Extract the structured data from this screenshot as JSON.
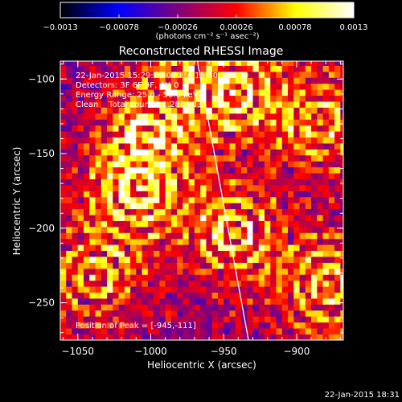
{
  "chart_data": {
    "type": "heatmap",
    "title": "Reconstructed RHESSI Image",
    "xlabel": "Heliocentric X (arcsec)",
    "ylabel": "Heliocentric Y (arcsec)",
    "xlim": [
      -1062,
      -868
    ],
    "ylim": [
      -275,
      -88
    ],
    "x_ticks": [
      -1050,
      -1000,
      -950,
      -900
    ],
    "y_ticks": [
      -100,
      -150,
      -200,
      -250
    ],
    "x_tick_labels": [
      "−1050",
      "−1000",
      "−950",
      "−900"
    ],
    "y_tick_labels": [
      "−100",
      "−150",
      "−200",
      "−250"
    ],
    "colorbar": {
      "range": [
        -0.0013,
        0.0013
      ],
      "ticks": [
        -0.0013,
        -0.00078,
        -0.00026,
        0.00026,
        0.00078,
        0.0013
      ],
      "tick_labels": [
        "−0.0013",
        "−0.00078",
        "−0.00026",
        "0.00026",
        "0.00078",
        "0.0013"
      ],
      "unit_label": "(photons cm⁻² s⁻¹ asec⁻²)",
      "colors": [
        "#000000",
        "#0000ff",
        "#7f007f",
        "#ff0000",
        "#ffff00",
        "#ffffff"
      ]
    },
    "annotations": [
      "22-Jan-2015 15:29:00.000 to 15:30:12.000",
      "Detectors: 3F 6F 9F, Att 0",
      "Energy Range: 25.0 - 50.0 keV",
      "Clean    Total counts: 1.28E+03"
    ],
    "peak_label": "Position of Peak = [-945,-111]",
    "peak": [
      -945,
      -111
    ],
    "sources": [
      {
        "x": -1010,
        "y": -175,
        "amp": 1.0,
        "r": 12
      },
      {
        "x": -1005,
        "y": -140,
        "amp": 0.75,
        "r": 10
      },
      {
        "x": -945,
        "y": -205,
        "amp": 0.9,
        "r": 10
      },
      {
        "x": -945,
        "y": -111,
        "amp": 1.0,
        "r": 11
      },
      {
        "x": -1040,
        "y": -235,
        "amp": 0.75,
        "r": 11
      },
      {
        "x": -885,
        "y": -130,
        "amp": 0.8,
        "r": 11
      },
      {
        "x": -880,
        "y": -240,
        "amp": 0.85,
        "r": 13
      },
      {
        "x": -985,
        "y": -100,
        "amp": 0.6,
        "r": 9
      }
    ],
    "limb": [
      [
        -968,
        -88
      ],
      [
        -933,
        -275
      ]
    ],
    "footer": "22-Jan-2015 18:31"
  }
}
